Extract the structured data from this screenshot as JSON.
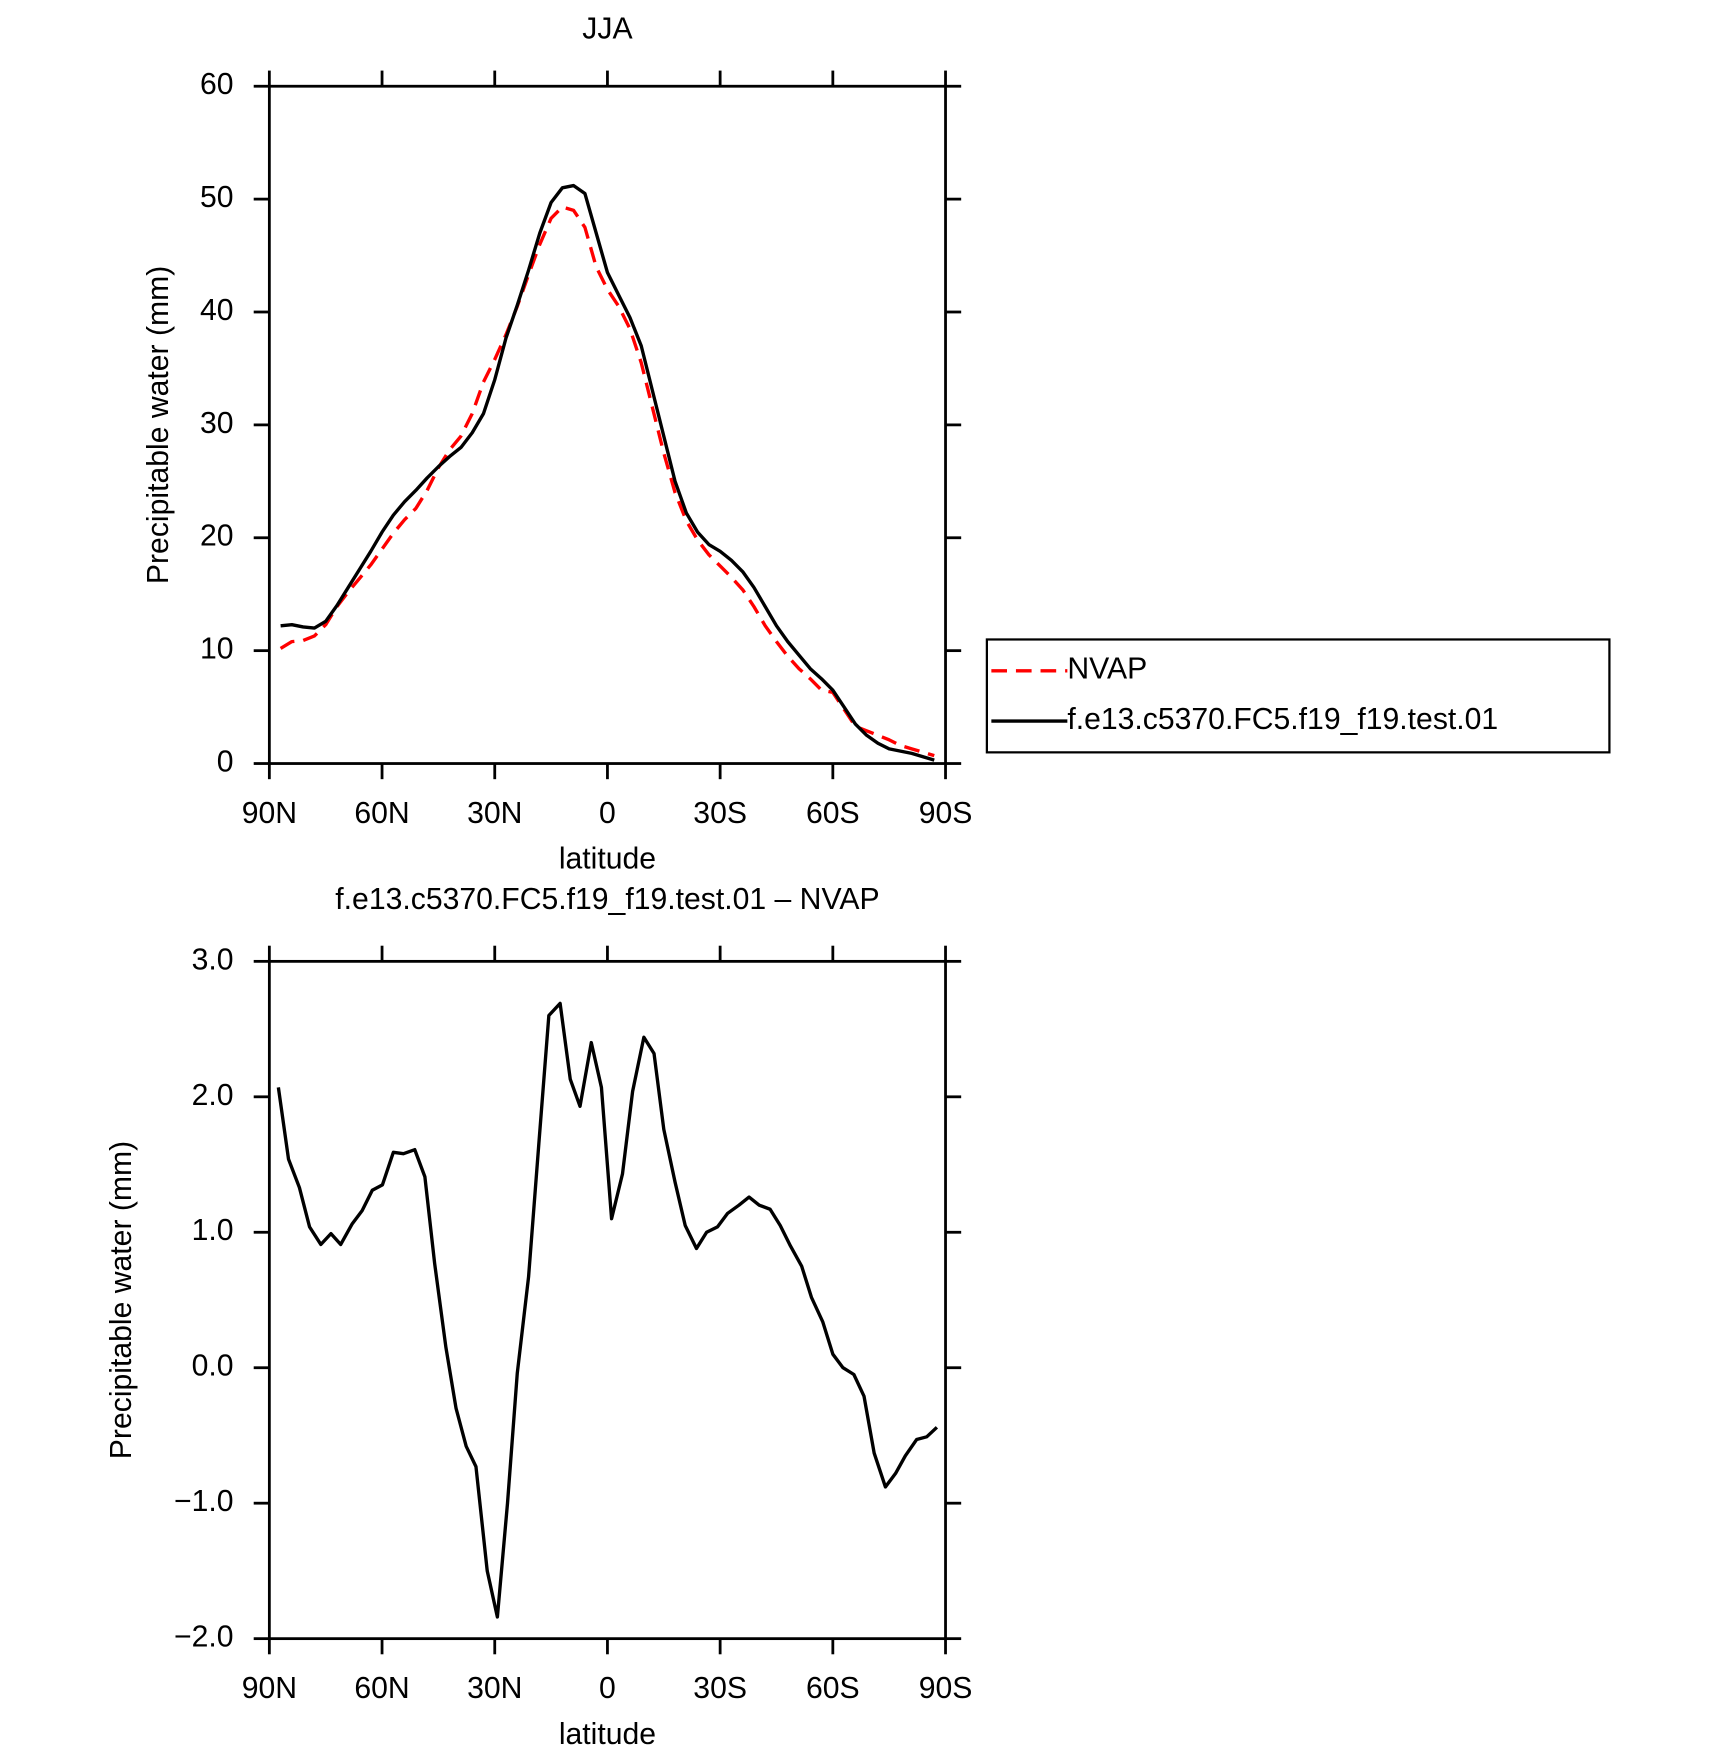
{
  "chart_data": [
    {
      "type": "line",
      "title": "JJA",
      "xlabel": "latitude",
      "ylabel": "Precipitable water (mm)",
      "x": [
        87,
        84,
        81,
        78,
        75,
        72,
        69,
        66,
        63,
        60,
        57,
        54,
        51,
        48,
        45,
        42,
        39,
        36,
        33,
        30,
        27,
        24,
        21,
        18,
        15,
        12,
        9,
        6,
        3,
        0,
        -3,
        -6,
        -9,
        -12,
        -15,
        -18,
        -21,
        -24,
        -27,
        -30,
        -33,
        -36,
        -39,
        -42,
        -45,
        -48,
        -51,
        -54,
        -57,
        -60,
        -63,
        -66,
        -69,
        -72,
        -75,
        -78,
        -81,
        -84,
        -87
      ],
      "series": [
        {
          "name": "NVAP",
          "color": "#ff0000",
          "style": "dashed",
          "values": [
            10.2,
            10.8,
            10.9,
            11.3,
            12.3,
            13.9,
            15.2,
            16.4,
            17.6,
            19.0,
            20.4,
            21.6,
            22.6,
            24.2,
            26.2,
            27.8,
            29.0,
            31.0,
            33.8,
            35.8,
            38.0,
            40.5,
            43.3,
            46.0,
            48.3,
            49.3,
            49.0,
            47.5,
            44.0,
            42.0,
            40.5,
            38.5,
            35.5,
            31.5,
            27.5,
            24.0,
            21.5,
            19.8,
            18.5,
            17.5,
            16.5,
            15.4,
            13.9,
            12.2,
            10.8,
            9.5,
            8.4,
            7.5,
            6.5,
            6.3,
            4.8,
            3.3,
            2.9,
            2.5,
            2.1,
            1.6,
            1.3,
            1.0,
            0.7
          ]
        },
        {
          "name": "f.e13.c5370.FC5.f19_f19.test.01",
          "color": "#000000",
          "style": "solid",
          "values": [
            12.2,
            12.3,
            12.1,
            12.0,
            12.6,
            14.0,
            15.6,
            17.2,
            18.8,
            20.5,
            22.0,
            23.2,
            24.2,
            25.3,
            26.3,
            27.2,
            28.0,
            29.3,
            31.0,
            34.0,
            37.7,
            40.6,
            43.7,
            47.0,
            49.7,
            51.0,
            51.2,
            50.5,
            47.0,
            43.5,
            41.5,
            39.5,
            37.0,
            33.0,
            29.0,
            25.0,
            22.2,
            20.5,
            19.4,
            18.8,
            18.0,
            17.0,
            15.6,
            13.9,
            12.2,
            10.8,
            9.6,
            8.4,
            7.5,
            6.5,
            5.0,
            3.5,
            2.5,
            1.8,
            1.3,
            1.1,
            0.9,
            0.6,
            0.3
          ]
        }
      ],
      "xlim": [
        90,
        -90
      ],
      "ylim": [
        0,
        60
      ],
      "xticks": [
        {
          "value": 90,
          "label": "90N"
        },
        {
          "value": 60,
          "label": "60N"
        },
        {
          "value": 30,
          "label": "30N"
        },
        0,
        {
          "value": -30,
          "label": "30S"
        },
        {
          "value": -60,
          "label": "60S"
        },
        {
          "value": -90,
          "label": "90S"
        }
      ],
      "yticks": [
        0,
        10,
        20,
        30,
        40,
        50,
        60
      ],
      "legend": "right"
    },
    {
      "type": "line",
      "title": "f.e13.c5370.FC5.f19_f19.test.01 – NVAP",
      "xlabel": "latitude",
      "ylabel": "Precipitable water (mm)",
      "x": [
        87.6,
        84.9,
        82,
        79.3,
        76.3,
        73.6,
        71,
        68,
        65.3,
        62.6,
        59.9,
        57,
        54.3,
        51.3,
        48.6,
        46,
        43,
        40.3,
        37.6,
        35,
        32,
        29.3,
        26.6,
        24,
        21,
        18.3,
        15.6,
        12.6,
        9.9,
        7.3,
        4.3,
        1.6,
        -1.1,
        -4,
        -6.7,
        -9.7,
        -12.4,
        -15,
        -18,
        -20.7,
        -23.7,
        -26.4,
        -29.3,
        -32,
        -35,
        -37.7,
        -40.4,
        -43.3,
        -46,
        -48.7,
        -51.7,
        -54.3,
        -57.3,
        -60,
        -62.7,
        -65.6,
        -68.3,
        -71,
        -74,
        -76.7,
        -79.3,
        -82.3,
        -85,
        -87.7
      ],
      "values": [
        2.07,
        1.54,
        1.33,
        1.04,
        0.91,
        0.99,
        0.91,
        1.06,
        1.16,
        1.31,
        1.35,
        1.59,
        1.58,
        1.61,
        1.41,
        0.77,
        0.15,
        -0.3,
        -0.58,
        -0.73,
        -1.5,
        -1.84,
        -1.0,
        -0.04,
        0.67,
        1.64,
        2.6,
        2.69,
        2.13,
        1.93,
        2.4,
        2.07,
        1.1,
        1.43,
        2.04,
        2.44,
        2.32,
        1.76,
        1.37,
        1.05,
        0.88,
        1.0,
        1.04,
        1.14,
        1.2,
        1.26,
        1.2,
        1.17,
        1.05,
        0.9,
        0.75,
        0.52,
        0.34,
        0.1,
        0.0,
        -0.05,
        -0.21,
        -0.63,
        -0.88,
        -0.78,
        -0.65,
        -0.53,
        -0.51,
        -0.44
      ],
      "color": "#000000",
      "xlim": [
        90,
        -90
      ],
      "ylim": [
        -2,
        3
      ],
      "xticks": [
        {
          "value": 90,
          "label": "90N"
        },
        {
          "value": 60,
          "label": "60N"
        },
        {
          "value": 30,
          "label": "30N"
        },
        0,
        {
          "value": -30,
          "label": "30S"
        },
        {
          "value": -60,
          "label": "60S"
        },
        {
          "value": -90,
          "label": "90S"
        }
      ],
      "yticks": [
        {
          "value": -2,
          "label": "−2.0"
        },
        {
          "value": -1,
          "label": "−1.0"
        },
        {
          "value": 0,
          "label": "0.0"
        },
        {
          "value": 1,
          "label": "1.0"
        },
        {
          "value": 2,
          "label": "2.0"
        },
        {
          "value": 3,
          "label": "3.0"
        }
      ]
    }
  ]
}
